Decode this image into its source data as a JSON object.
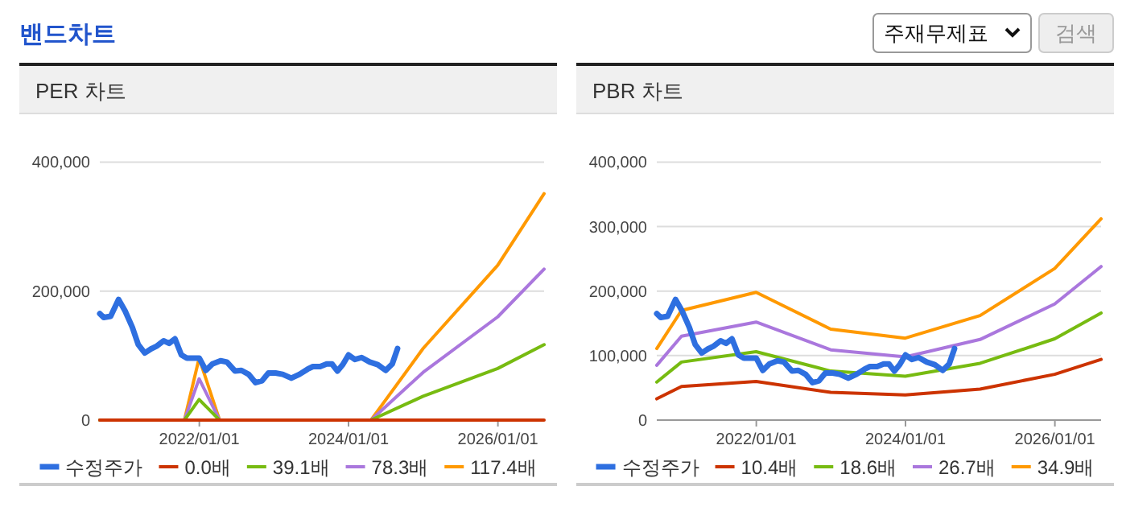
{
  "chart_data": [
    {
      "type": "other",
      "title": "밴드차트",
      "annotations": [
        "주재무제표",
        "검색"
      ]
    },
    {
      "type": "line",
      "title": "PER 차트",
      "xlim": [
        "2020-09-01",
        "2026-08-15"
      ],
      "ylim": [
        0,
        400000
      ],
      "yticks": [
        0,
        {
          "value": 200000,
          "label": "200,000"
        },
        {
          "value": 400000,
          "label": "400,000"
        }
      ],
      "xticks": [
        {
          "value": "2022-01-01",
          "label": "2022/01/01"
        },
        {
          "value": "2024-01-01",
          "label": "2024/01/01"
        },
        {
          "value": "2026-01-01",
          "label": "2026/01/01"
        }
      ],
      "grid": "y",
      "legend": "bottom",
      "series": [
        {
          "name": "수정주가",
          "color": "#2e6fe0",
          "x": [
            "2020-09-01",
            "2020-09-20",
            "2020-10-24",
            "2020-12-02",
            "2021-01-03",
            "2021-02-07",
            "2021-03-08",
            "2021-04-09",
            "2021-05-13",
            "2021-06-08",
            "2021-07-10",
            "2021-08-06",
            "2021-09-04",
            "2021-10-05",
            "2021-11-01",
            "2021-12-05",
            "2022-01-01",
            "2022-02-02",
            "2022-03-06",
            "2022-04-15",
            "2022-05-16",
            "2022-06-25",
            "2022-07-26",
            "2022-08-30",
            "2022-10-03",
            "2022-11-04",
            "2022-12-05",
            "2023-01-09",
            "2023-02-13",
            "2023-03-27",
            "2023-05-06",
            "2023-06-15",
            "2023-07-11",
            "2023-08-15",
            "2023-09-16",
            "2023-10-12",
            "2023-11-08",
            "2023-12-04",
            "2024-01-01",
            "2024-02-01",
            "2024-03-05",
            "2024-04-14",
            "2024-05-23",
            "2024-07-01",
            "2024-08-02",
            "2024-08-28"
          ],
          "values": [
            165000,
            159000,
            161000,
            187000,
            169000,
            144000,
            117000,
            104000,
            111000,
            115000,
            123000,
            119000,
            126000,
            101000,
            96000,
            96000,
            96000,
            77000,
            87000,
            92000,
            90000,
            76000,
            77000,
            71000,
            58000,
            61000,
            73000,
            73000,
            71000,
            65000,
            71000,
            79000,
            83000,
            83000,
            87000,
            87000,
            76000,
            86000,
            101000,
            94000,
            97000,
            90000,
            86000,
            77000,
            87000,
            111000
          ]
        },
        {
          "name": "0.0배",
          "color": "#cc3300",
          "x": [
            "2020-09-01",
            "2026-08-15"
          ],
          "values": [
            0,
            0
          ]
        },
        {
          "name": "39.1배",
          "color": "#77bb11",
          "x": [
            "2020-09-01",
            "2021-10-20",
            "2021-12-31",
            "2022-04-10",
            "2024-04-20",
            "2024-12-31",
            "2025-12-31",
            "2026-08-15"
          ],
          "values": [
            0,
            0,
            32000,
            0,
            0,
            37000,
            80000,
            117000
          ]
        },
        {
          "name": "78.3배",
          "color": "#aa77dd",
          "x": [
            "2020-09-01",
            "2021-10-20",
            "2021-12-31",
            "2022-04-10",
            "2024-04-20",
            "2024-12-31",
            "2025-12-31",
            "2026-08-15"
          ],
          "values": [
            0,
            0,
            64000,
            0,
            0,
            74000,
            160000,
            234000
          ]
        },
        {
          "name": "117.4배",
          "color": "#ff9900",
          "x": [
            "2020-09-01",
            "2021-10-20",
            "2021-12-31",
            "2022-04-10",
            "2024-04-20",
            "2024-12-31",
            "2025-12-31",
            "2026-08-15"
          ],
          "values": [
            0,
            0,
            96000,
            0,
            0,
            111000,
            240000,
            351000
          ]
        }
      ]
    },
    {
      "type": "line",
      "title": "PBR 차트",
      "xlim": [
        "2020-09-01",
        "2026-08-15"
      ],
      "ylim": [
        0,
        400000
      ],
      "yticks": [
        0,
        {
          "value": 100000,
          "label": "100,000"
        },
        {
          "value": 200000,
          "label": "200,000"
        },
        {
          "value": 300000,
          "label": "300,000"
        },
        {
          "value": 400000,
          "label": "400,000"
        }
      ],
      "xticks": [
        {
          "value": "2022-01-01",
          "label": "2022/01/01"
        },
        {
          "value": "2024-01-01",
          "label": "2024/01/01"
        },
        {
          "value": "2026-01-01",
          "label": "2026/01/01"
        }
      ],
      "grid": "y",
      "legend": "bottom",
      "series": [
        {
          "name": "수정주가",
          "color": "#2e6fe0",
          "x": [
            "2020-09-01",
            "2020-09-20",
            "2020-10-24",
            "2020-12-02",
            "2021-01-03",
            "2021-02-07",
            "2021-03-08",
            "2021-04-09",
            "2021-05-13",
            "2021-06-08",
            "2021-07-10",
            "2021-08-06",
            "2021-09-04",
            "2021-10-05",
            "2021-11-01",
            "2021-12-05",
            "2022-01-01",
            "2022-02-02",
            "2022-03-06",
            "2022-04-15",
            "2022-05-16",
            "2022-06-25",
            "2022-07-26",
            "2022-08-30",
            "2022-10-03",
            "2022-11-04",
            "2022-12-05",
            "2023-01-09",
            "2023-02-13",
            "2023-03-27",
            "2023-05-06",
            "2023-06-15",
            "2023-07-11",
            "2023-08-15",
            "2023-09-16",
            "2023-10-12",
            "2023-11-08",
            "2023-12-04",
            "2024-01-01",
            "2024-02-01",
            "2024-03-05",
            "2024-04-14",
            "2024-05-23",
            "2024-07-01",
            "2024-08-02",
            "2024-08-28"
          ],
          "values": [
            165000,
            159000,
            161000,
            187000,
            169000,
            144000,
            117000,
            104000,
            111000,
            115000,
            123000,
            119000,
            126000,
            101000,
            96000,
            96000,
            96000,
            77000,
            87000,
            92000,
            90000,
            76000,
            77000,
            71000,
            58000,
            61000,
            73000,
            73000,
            71000,
            65000,
            71000,
            79000,
            83000,
            83000,
            87000,
            87000,
            76000,
            86000,
            101000,
            94000,
            97000,
            90000,
            86000,
            77000,
            87000,
            111000
          ]
        },
        {
          "name": "10.4배",
          "color": "#cc3300",
          "x": [
            "2020-09-01",
            "2020-12-31",
            "2021-12-31",
            "2022-12-31",
            "2023-12-31",
            "2024-12-31",
            "2025-12-31",
            "2026-08-15"
          ],
          "values": [
            33000,
            52000,
            60000,
            43000,
            39000,
            48000,
            71000,
            94000
          ]
        },
        {
          "name": "18.6배",
          "color": "#77bb11",
          "x": [
            "2020-09-01",
            "2020-12-31",
            "2021-12-31",
            "2022-12-31",
            "2023-12-31",
            "2024-12-31",
            "2025-12-31",
            "2026-08-15"
          ],
          "values": [
            59000,
            90000,
            106000,
            76000,
            68000,
            88000,
            126000,
            166000
          ]
        },
        {
          "name": "26.7배",
          "color": "#aa77dd",
          "x": [
            "2020-09-01",
            "2020-12-31",
            "2021-12-31",
            "2022-12-31",
            "2023-12-31",
            "2024-12-31",
            "2025-12-31",
            "2026-08-15"
          ],
          "values": [
            85000,
            130000,
            152000,
            109000,
            98000,
            125000,
            180000,
            238000
          ]
        },
        {
          "name": "34.9배",
          "color": "#ff9900",
          "x": [
            "2020-09-01",
            "2020-12-31",
            "2021-12-31",
            "2022-12-31",
            "2023-12-31",
            "2024-12-31",
            "2025-12-31",
            "2026-08-15"
          ],
          "values": [
            111000,
            170000,
            198000,
            141000,
            127000,
            162000,
            235000,
            312000
          ]
        }
      ]
    }
  ]
}
